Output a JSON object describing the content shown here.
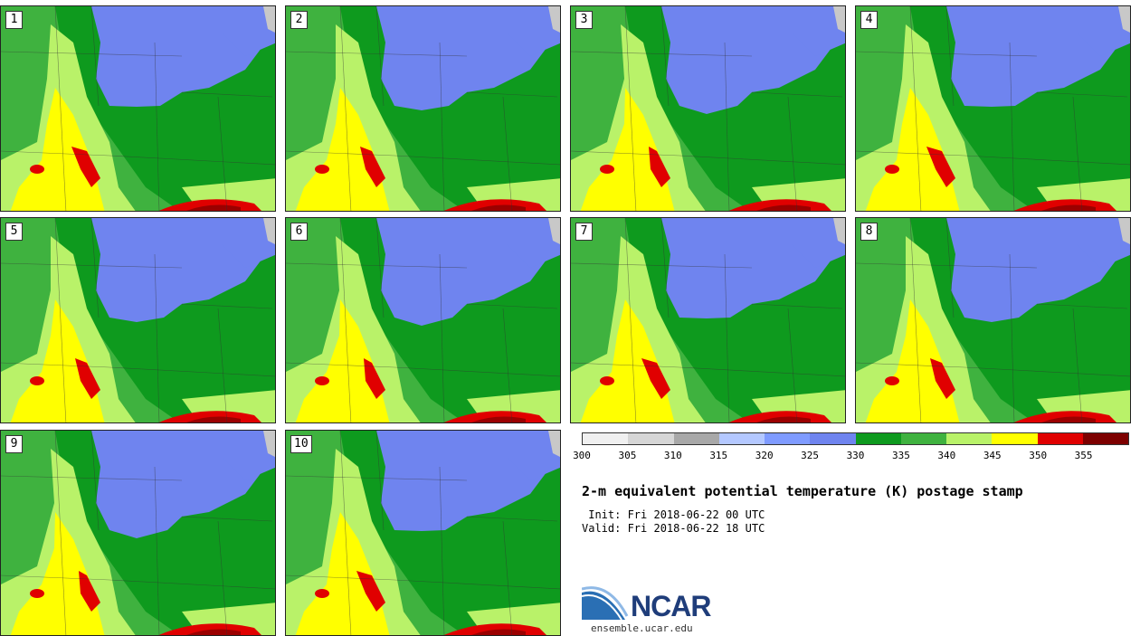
{
  "panels": [
    {
      "label": "1"
    },
    {
      "label": "2"
    },
    {
      "label": "3"
    },
    {
      "label": "4"
    },
    {
      "label": "5"
    },
    {
      "label": "6"
    },
    {
      "label": "7"
    },
    {
      "label": "8"
    },
    {
      "label": "9"
    },
    {
      "label": "10"
    }
  ],
  "colorbar": {
    "colors": [
      "#f0f0f0",
      "#d6d6d6",
      "#a8a8a8",
      "#b4c8ff",
      "#7f9bff",
      "#6f84ef",
      "#0e9a1e",
      "#3fb23f",
      "#b9f269",
      "#ffff00",
      "#e00000",
      "#7d0000"
    ],
    "ticks": [
      "300",
      "305",
      "310",
      "315",
      "320",
      "325",
      "330",
      "335",
      "340",
      "345",
      "350",
      "355"
    ]
  },
  "title": "2-m equivalent potential temperature (K) postage stamp",
  "init": " Init: Fri 2018-06-22 00 UTC",
  "valid": "Valid: Fri 2018-06-22 18 UTC",
  "logo": {
    "name": "NCAR",
    "url": "ensemble.ucar.edu"
  }
}
